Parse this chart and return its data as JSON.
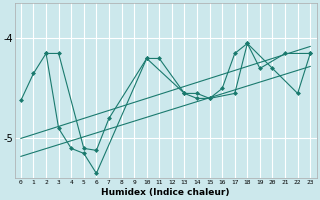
{
  "title": "",
  "xlabel": "Humidex (Indice chaleur)",
  "bg_color": "#cce8ec",
  "grid_color": "#ffffff",
  "line_color": "#1a7a6e",
  "x_ticks": [
    0,
    1,
    2,
    3,
    4,
    5,
    6,
    7,
    8,
    9,
    10,
    11,
    12,
    13,
    14,
    15,
    16,
    17,
    18,
    19,
    20,
    21,
    22,
    23
  ],
  "y_ticks": [
    -4,
    -5
  ],
  "ylim": [
    -5.4,
    -3.65
  ],
  "xlim": [
    -0.5,
    23.5
  ],
  "line1_x": [
    0,
    1,
    2,
    3,
    5,
    6,
    7,
    10,
    11,
    13,
    14,
    15,
    16,
    17,
    18,
    19,
    21,
    23
  ],
  "line1_y": [
    -4.62,
    -4.35,
    -4.15,
    -4.15,
    -5.1,
    -5.12,
    -4.8,
    -4.2,
    -4.2,
    -4.55,
    -4.55,
    -4.6,
    -4.5,
    -4.15,
    -4.05,
    -4.3,
    -4.15,
    -4.15
  ],
  "line2_x": [
    2,
    3,
    4,
    5,
    6,
    10,
    13,
    14,
    15,
    17,
    18,
    20,
    22,
    23
  ],
  "line2_y": [
    -4.15,
    -4.9,
    -5.1,
    -5.15,
    -5.35,
    -4.2,
    -4.55,
    -4.6,
    -4.6,
    -4.55,
    -4.05,
    -4.3,
    -4.55,
    -4.15
  ],
  "line3_x": [
    0,
    23
  ],
  "line3_y": [
    -5.0,
    -4.08
  ],
  "line4_x": [
    0,
    23
  ],
  "line4_y": [
    -5.18,
    -4.28
  ]
}
